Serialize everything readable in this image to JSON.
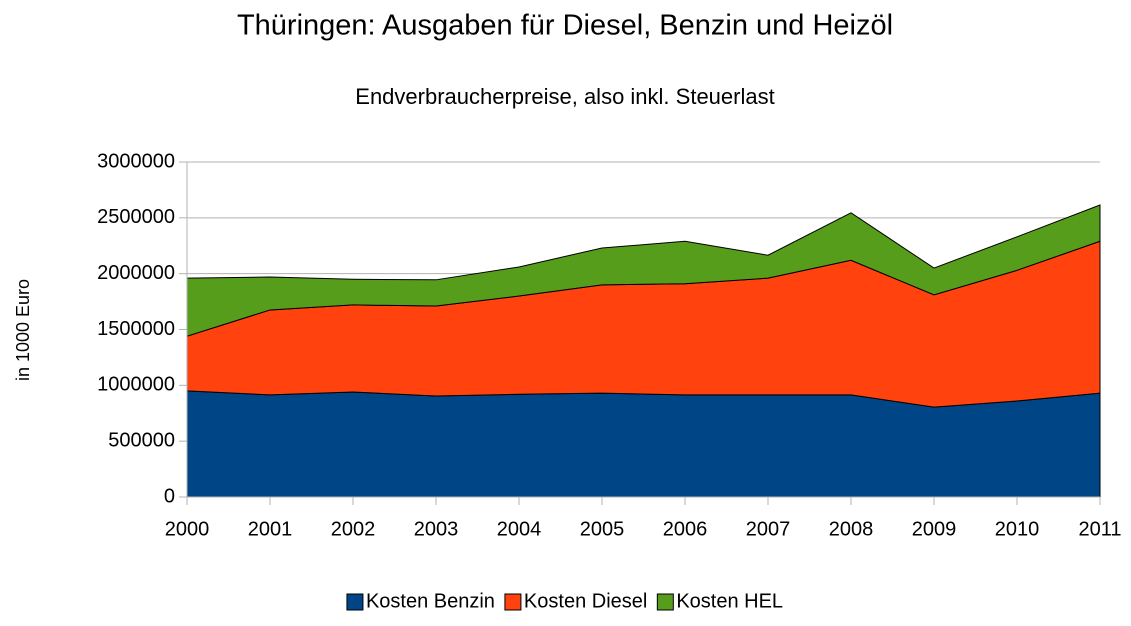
{
  "chart_data": {
    "type": "stacked_area",
    "title": "Thüringen: Ausgaben für Diesel, Benzin und Heizöl",
    "subtitle": "Endverbraucherpreise, also inkl. Steuerlast",
    "y_label": "in 1000 Euro",
    "categories": [
      "2000",
      "2001",
      "2002",
      "2003",
      "2004",
      "2005",
      "2006",
      "2007",
      "2008",
      "2009",
      "2010",
      "2011"
    ],
    "series": [
      {
        "name": "Kosten Benzin",
        "color": "#004586",
        "values": [
          950000,
          915000,
          940000,
          905000,
          920000,
          930000,
          915000,
          915000,
          915000,
          805000,
          860000,
          930000
        ]
      },
      {
        "name": "Kosten Diesel",
        "color": "#ff420e",
        "values": [
          490000,
          760000,
          780000,
          805000,
          880000,
          970000,
          995000,
          1045000,
          1205000,
          1005000,
          1170000,
          1360000
        ]
      },
      {
        "name": "Kosten HEL",
        "color": "#579d1c",
        "values": [
          520000,
          295000,
          230000,
          235000,
          260000,
          330000,
          380000,
          205000,
          425000,
          240000,
          300000,
          325000
        ]
      }
    ],
    "ylim": [
      0,
      3000000
    ],
    "yticks": [
      0,
      500000,
      1000000,
      1500000,
      2000000,
      2500000,
      3000000
    ],
    "grid": true,
    "legend": "bottom"
  }
}
